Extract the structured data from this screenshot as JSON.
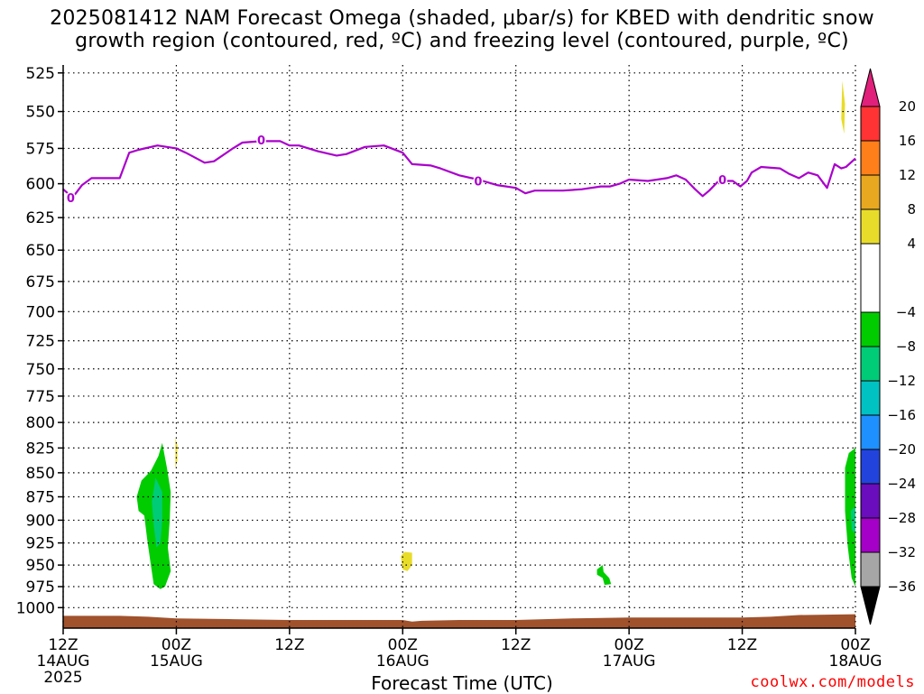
{
  "title": {
    "line1": "2025081412 NAM Forecast Omega (shaded, μbar/s) for KBED with dendritic snow",
    "line2": "growth region (contoured, red, ºC) and freezing level (contoured, purple, ºC)"
  },
  "xlabel": "Forecast Time (UTC)",
  "watermark": "coolwx.com/models",
  "year_label": "2025",
  "chart_data": {
    "type": "heatmap",
    "title": "2025081412 NAM Forecast Omega (shaded, μbar/s) for KBED with dendritic snow growth region (contoured, red, ºC) and freezing level (contoured, purple, ºC)",
    "xlabel": "Forecast Time (UTC)",
    "ylabel": "",
    "y_axis": {
      "ticks": [
        525,
        550,
        575,
        600,
        625,
        650,
        675,
        700,
        725,
        750,
        775,
        800,
        825,
        850,
        875,
        900,
        925,
        950,
        975,
        1000
      ],
      "range": [
        520,
        1025
      ],
      "scale": "log",
      "inverted": true
    },
    "x_axis": {
      "range_hours": [
        0,
        84
      ],
      "ticks": [
        {
          "hour": 0,
          "label": "12Z",
          "date": "14AUG"
        },
        {
          "hour": 12,
          "label": "00Z",
          "date": "15AUG"
        },
        {
          "hour": 24,
          "label": "12Z",
          "date": ""
        },
        {
          "hour": 36,
          "label": "00Z",
          "date": "16AUG"
        },
        {
          "hour": 48,
          "label": "12Z",
          "date": ""
        },
        {
          "hour": 60,
          "label": "00Z",
          "date": "17AUG"
        },
        {
          "hour": 72,
          "label": "12Z",
          "date": ""
        },
        {
          "hour": 84,
          "label": "00Z",
          "date": "18AUG"
        }
      ]
    },
    "grid": true,
    "colorbar": {
      "labels": [
        "20",
        "16",
        "12",
        "8",
        "4",
        "−4",
        "−8",
        "−12",
        "−16",
        "−20",
        "−24",
        "−28",
        "−32",
        "−36"
      ],
      "bands": [
        {
          "from": 20,
          "to": 24,
          "color": "#e0207a"
        },
        {
          "from": 16,
          "to": 20,
          "color": "#ff3333"
        },
        {
          "from": 12,
          "to": 16,
          "color": "#ff7f1a"
        },
        {
          "from": 8,
          "to": 12,
          "color": "#e8a820"
        },
        {
          "from": 4,
          "to": 8,
          "color": "#e8dc2a"
        },
        {
          "from": -4,
          "to": 4,
          "color": "#ffffff"
        },
        {
          "from": -8,
          "to": -4,
          "color": "#00cc00"
        },
        {
          "from": -12,
          "to": -8,
          "color": "#00cc77"
        },
        {
          "from": -16,
          "to": -12,
          "color": "#00c2c2"
        },
        {
          "from": -20,
          "to": -16,
          "color": "#1e90ff"
        },
        {
          "from": -24,
          "to": -20,
          "color": "#2244dd"
        },
        {
          "from": -28,
          "to": -24,
          "color": "#6a0dbd"
        },
        {
          "from": -32,
          "to": -28,
          "color": "#a400c8"
        },
        {
          "from": -36,
          "to": -32,
          "color": "#a6a6a6"
        },
        {
          "from": -40,
          "to": -36,
          "color": "#000000"
        }
      ]
    },
    "freezing_level": {
      "contour_value": "0",
      "color": "#aa00cc",
      "label_points": [
        {
          "hour": 0.8,
          "pressure": 610
        },
        {
          "hour": 21,
          "pressure": 569
        },
        {
          "hour": 44,
          "pressure": 598
        },
        {
          "hour": 69.9,
          "pressure": 597
        }
      ],
      "points": [
        {
          "hour": 0,
          "pressure": 604
        },
        {
          "hour": 1,
          "pressure": 610
        },
        {
          "hour": 2,
          "pressure": 601
        },
        {
          "hour": 3,
          "pressure": 596
        },
        {
          "hour": 6,
          "pressure": 596
        },
        {
          "hour": 7,
          "pressure": 578
        },
        {
          "hour": 8,
          "pressure": 576
        },
        {
          "hour": 10,
          "pressure": 573
        },
        {
          "hour": 12,
          "pressure": 575
        },
        {
          "hour": 13,
          "pressure": 578
        },
        {
          "hour": 15,
          "pressure": 585
        },
        {
          "hour": 16,
          "pressure": 584
        },
        {
          "hour": 18,
          "pressure": 575
        },
        {
          "hour": 19,
          "pressure": 571
        },
        {
          "hour": 21,
          "pressure": 570
        },
        {
          "hour": 23,
          "pressure": 570
        },
        {
          "hour": 24,
          "pressure": 573
        },
        {
          "hour": 25,
          "pressure": 573
        },
        {
          "hour": 27,
          "pressure": 577
        },
        {
          "hour": 29,
          "pressure": 580
        },
        {
          "hour": 30,
          "pressure": 579
        },
        {
          "hour": 32,
          "pressure": 574
        },
        {
          "hour": 34,
          "pressure": 573
        },
        {
          "hour": 36,
          "pressure": 578
        },
        {
          "hour": 37,
          "pressure": 586
        },
        {
          "hour": 39,
          "pressure": 587
        },
        {
          "hour": 40,
          "pressure": 589
        },
        {
          "hour": 42,
          "pressure": 594
        },
        {
          "hour": 44,
          "pressure": 597
        },
        {
          "hour": 46,
          "pressure": 601
        },
        {
          "hour": 48,
          "pressure": 603
        },
        {
          "hour": 49,
          "pressure": 607
        },
        {
          "hour": 50,
          "pressure": 605
        },
        {
          "hour": 53,
          "pressure": 605
        },
        {
          "hour": 55,
          "pressure": 604
        },
        {
          "hour": 57,
          "pressure": 602
        },
        {
          "hour": 58,
          "pressure": 602
        },
        {
          "hour": 59,
          "pressure": 600
        },
        {
          "hour": 60,
          "pressure": 597
        },
        {
          "hour": 62,
          "pressure": 598
        },
        {
          "hour": 64,
          "pressure": 596
        },
        {
          "hour": 65,
          "pressure": 594
        },
        {
          "hour": 66,
          "pressure": 597
        },
        {
          "hour": 67,
          "pressure": 604
        },
        {
          "hour": 67.8,
          "pressure": 609
        },
        {
          "hour": 68.5,
          "pressure": 605
        },
        {
          "hour": 69.5,
          "pressure": 598
        },
        {
          "hour": 71,
          "pressure": 598
        },
        {
          "hour": 71.8,
          "pressure": 602
        },
        {
          "hour": 72.5,
          "pressure": 598
        },
        {
          "hour": 73,
          "pressure": 592
        },
        {
          "hour": 74,
          "pressure": 588
        },
        {
          "hour": 76,
          "pressure": 589
        },
        {
          "hour": 77,
          "pressure": 593
        },
        {
          "hour": 78,
          "pressure": 596
        },
        {
          "hour": 79,
          "pressure": 592
        },
        {
          "hour": 80,
          "pressure": 594
        },
        {
          "hour": 81,
          "pressure": 603
        },
        {
          "hour": 81.8,
          "pressure": 586
        },
        {
          "hour": 82.5,
          "pressure": 589
        },
        {
          "hour": 83,
          "pressure": 588
        },
        {
          "hour": 84,
          "pressure": 582
        }
      ]
    },
    "omega_regions": [
      {
        "band": "-8 to -4",
        "color": "#00cc00",
        "outline": [
          {
            "hour": 7.8,
            "pressure": 875
          },
          {
            "hour": 8.3,
            "pressure": 858
          },
          {
            "hour": 9.3,
            "pressure": 848
          },
          {
            "hour": 10.1,
            "pressure": 833
          },
          {
            "hour": 10.5,
            "pressure": 820
          },
          {
            "hour": 11.0,
            "pressure": 845
          },
          {
            "hour": 11.4,
            "pressure": 870
          },
          {
            "hour": 11.3,
            "pressure": 900
          },
          {
            "hour": 11.1,
            "pressure": 930
          },
          {
            "hour": 11.4,
            "pressure": 957
          },
          {
            "hour": 10.8,
            "pressure": 975
          },
          {
            "hour": 10.3,
            "pressure": 978
          },
          {
            "hour": 9.6,
            "pressure": 972
          },
          {
            "hour": 9.3,
            "pressure": 950
          },
          {
            "hour": 8.9,
            "pressure": 920
          },
          {
            "hour": 8.6,
            "pressure": 895
          },
          {
            "hour": 8.0,
            "pressure": 890
          }
        ]
      },
      {
        "band": "-12 to -8",
        "color": "#00cc77",
        "outline": [
          {
            "hour": 9.8,
            "pressure": 855
          },
          {
            "hour": 10.5,
            "pressure": 870
          },
          {
            "hour": 10.5,
            "pressure": 900
          },
          {
            "hour": 10.3,
            "pressure": 925
          },
          {
            "hour": 9.9,
            "pressure": 930
          },
          {
            "hour": 9.6,
            "pressure": 905
          },
          {
            "hour": 9.4,
            "pressure": 880
          }
        ]
      },
      {
        "band": "4 to 8",
        "color": "#e8dc2a",
        "outline": [
          {
            "hour": 11.9,
            "pressure": 815
          },
          {
            "hour": 12.1,
            "pressure": 822
          },
          {
            "hour": 12.1,
            "pressure": 838
          },
          {
            "hour": 11.9,
            "pressure": 845
          }
        ]
      },
      {
        "band": "4 to 8",
        "color": "#e8dc2a",
        "outline": [
          {
            "hour": 35.8,
            "pressure": 940
          },
          {
            "hour": 36.2,
            "pressure": 935
          },
          {
            "hour": 37.0,
            "pressure": 936
          },
          {
            "hour": 37.0,
            "pressure": 950
          },
          {
            "hour": 36.5,
            "pressure": 957
          },
          {
            "hour": 36.0,
            "pressure": 955
          }
        ]
      },
      {
        "band": "-8 to -4",
        "color": "#00cc00",
        "outline": [
          {
            "hour": 56.6,
            "pressure": 955
          },
          {
            "hour": 57.2,
            "pressure": 950
          },
          {
            "hour": 57.3,
            "pressure": 958
          },
          {
            "hour": 57.9,
            "pressure": 965
          },
          {
            "hour": 58.1,
            "pressure": 972
          },
          {
            "hour": 57.4,
            "pressure": 973
          },
          {
            "hour": 57.2,
            "pressure": 965
          },
          {
            "hour": 56.6,
            "pressure": 961
          }
        ]
      },
      {
        "band": "4 to 8",
        "color": "#e8dc2a",
        "outline": [
          {
            "hour": 82.6,
            "pressure": 530
          },
          {
            "hour": 82.9,
            "pressure": 545
          },
          {
            "hour": 82.8,
            "pressure": 565
          },
          {
            "hour": 82.5,
            "pressure": 555
          }
        ]
      },
      {
        "band": "-8 to -4",
        "color": "#00cc00",
        "outline": [
          {
            "hour": 82.9,
            "pressure": 845
          },
          {
            "hour": 83.3,
            "pressure": 830
          },
          {
            "hour": 84.0,
            "pressure": 825
          },
          {
            "hour": 84.0,
            "pressure": 975
          },
          {
            "hour": 83.6,
            "pressure": 965
          },
          {
            "hour": 83.2,
            "pressure": 930
          },
          {
            "hour": 82.9,
            "pressure": 890
          }
        ]
      },
      {
        "band": "-12 to -8",
        "color": "#00cc77",
        "outline": [
          {
            "hour": 83.5,
            "pressure": 890
          },
          {
            "hour": 84.0,
            "pressure": 885
          },
          {
            "hour": 84.0,
            "pressure": 915
          },
          {
            "hour": 83.6,
            "pressure": 910
          }
        ]
      }
    ],
    "terrain": {
      "color": "#a0522d",
      "surface": [
        {
          "hour": 0,
          "pressure": 1010
        },
        {
          "hour": 6,
          "pressure": 1010
        },
        {
          "hour": 9,
          "pressure": 1011
        },
        {
          "hour": 12,
          "pressure": 1013
        },
        {
          "hour": 18,
          "pressure": 1014
        },
        {
          "hour": 24,
          "pressure": 1015
        },
        {
          "hour": 30,
          "pressure": 1015
        },
        {
          "hour": 36,
          "pressure": 1015
        },
        {
          "hour": 37,
          "pressure": 1017
        },
        {
          "hour": 38,
          "pressure": 1016
        },
        {
          "hour": 42,
          "pressure": 1015
        },
        {
          "hour": 48,
          "pressure": 1015
        },
        {
          "hour": 54,
          "pressure": 1013
        },
        {
          "hour": 60,
          "pressure": 1012
        },
        {
          "hour": 66,
          "pressure": 1012
        },
        {
          "hour": 72,
          "pressure": 1012
        },
        {
          "hour": 75,
          "pressure": 1011
        },
        {
          "hour": 78,
          "pressure": 1009
        },
        {
          "hour": 84,
          "pressure": 1008
        }
      ]
    }
  }
}
